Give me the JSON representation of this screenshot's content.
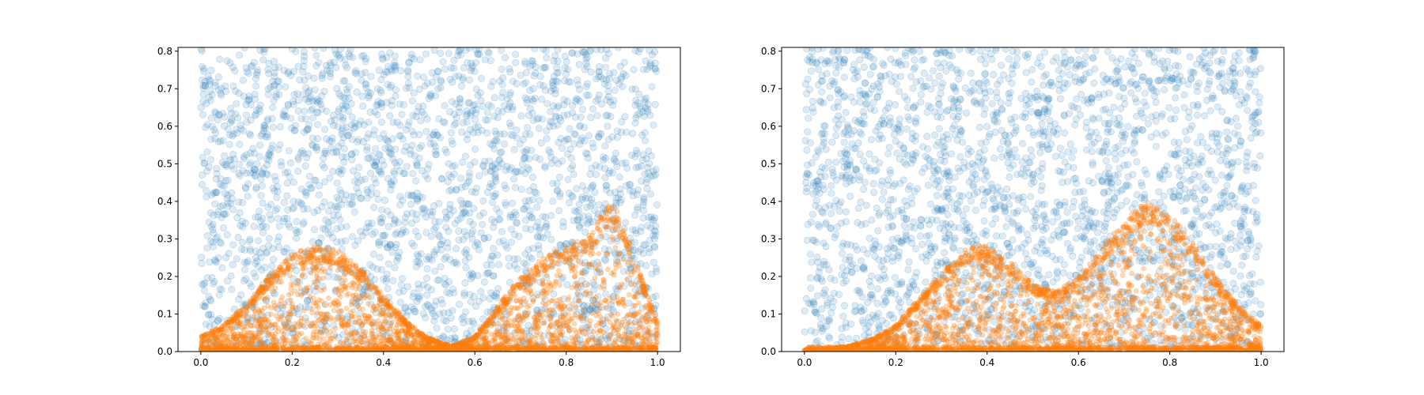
{
  "colors": {
    "uniform_points": "#1f77b4",
    "density_points": "#ff7f0e",
    "axes": "#000000",
    "background": "#ffffff"
  },
  "chart_data": [
    {
      "type": "scatter",
      "title": "",
      "xlabel": "",
      "ylabel": "",
      "xlim": [
        -0.05,
        1.05
      ],
      "ylim": [
        0.0,
        0.81
      ],
      "xticks": [
        0.0,
        0.2,
        0.4,
        0.6,
        0.8,
        1.0
      ],
      "xtick_labels": [
        "0.0",
        "0.2",
        "0.4",
        "0.6",
        "0.8",
        "1.0"
      ],
      "yticks": [
        0.0,
        0.1,
        0.2,
        0.3,
        0.4,
        0.5,
        0.6,
        0.7,
        0.8
      ],
      "ytick_labels": [
        "0.0",
        "0.1",
        "0.2",
        "0.3",
        "0.4",
        "0.5",
        "0.6",
        "0.7",
        "0.8"
      ],
      "grid": false,
      "legend": "none",
      "series": [
        {
          "color": "#1f77b4",
          "alpha": 0.15,
          "marker": "circle",
          "distribution": "uniform",
          "x_range": [
            0.0,
            1.0
          ],
          "y_range": [
            0.0,
            0.81
          ]
        },
        {
          "color": "#ff7f0e",
          "alpha": 0.3,
          "marker": "circle",
          "distribution": "under_density_curve",
          "x_range": [
            0.0,
            1.0
          ],
          "density_curve": {
            "x": [
              0.0,
              0.05,
              0.1,
              0.15,
              0.2,
              0.25,
              0.3,
              0.35,
              0.4,
              0.45,
              0.5,
              0.55,
              0.6,
              0.65,
              0.7,
              0.75,
              0.8,
              0.85,
              0.88,
              0.9,
              0.92,
              0.95,
              1.0
            ],
            "y": [
              0.04,
              0.07,
              0.13,
              0.2,
              0.26,
              0.285,
              0.27,
              0.22,
              0.15,
              0.08,
              0.035,
              0.015,
              0.04,
              0.12,
              0.2,
              0.25,
              0.28,
              0.31,
              0.37,
              0.395,
              0.36,
              0.25,
              0.08
            ]
          }
        }
      ]
    },
    {
      "type": "scatter",
      "title": "",
      "xlabel": "",
      "ylabel": "",
      "xlim": [
        -0.05,
        1.05
      ],
      "ylim": [
        0.0,
        0.81
      ],
      "xticks": [
        0.0,
        0.2,
        0.4,
        0.6,
        0.8,
        1.0
      ],
      "xtick_labels": [
        "0.0",
        "0.2",
        "0.4",
        "0.6",
        "0.8",
        "1.0"
      ],
      "yticks": [
        0.0,
        0.1,
        0.2,
        0.3,
        0.4,
        0.5,
        0.6,
        0.7,
        0.8
      ],
      "ytick_labels": [
        "0.0",
        "0.1",
        "0.2",
        "0.3",
        "0.4",
        "0.5",
        "0.6",
        "0.7",
        "0.8"
      ],
      "grid": false,
      "legend": "none",
      "series": [
        {
          "color": "#1f77b4",
          "alpha": 0.15,
          "marker": "circle",
          "distribution": "uniform",
          "x_range": [
            0.0,
            1.0
          ],
          "y_range": [
            0.0,
            0.81
          ]
        },
        {
          "color": "#ff7f0e",
          "alpha": 0.3,
          "marker": "circle",
          "distribution": "under_density_curve",
          "x_range": [
            0.0,
            1.0
          ],
          "density_curve": {
            "x": [
              0.0,
              0.05,
              0.1,
              0.15,
              0.2,
              0.25,
              0.3,
              0.35,
              0.38,
              0.4,
              0.45,
              0.5,
              0.55,
              0.6,
              0.65,
              0.7,
              0.75,
              0.8,
              0.85,
              0.9,
              0.95,
              1.0
            ],
            "y": [
              0.005,
              0.008,
              0.015,
              0.035,
              0.07,
              0.14,
              0.21,
              0.27,
              0.285,
              0.28,
              0.24,
              0.18,
              0.16,
              0.2,
              0.27,
              0.35,
              0.4,
              0.37,
              0.29,
              0.2,
              0.12,
              0.07
            ]
          }
        }
      ]
    }
  ]
}
